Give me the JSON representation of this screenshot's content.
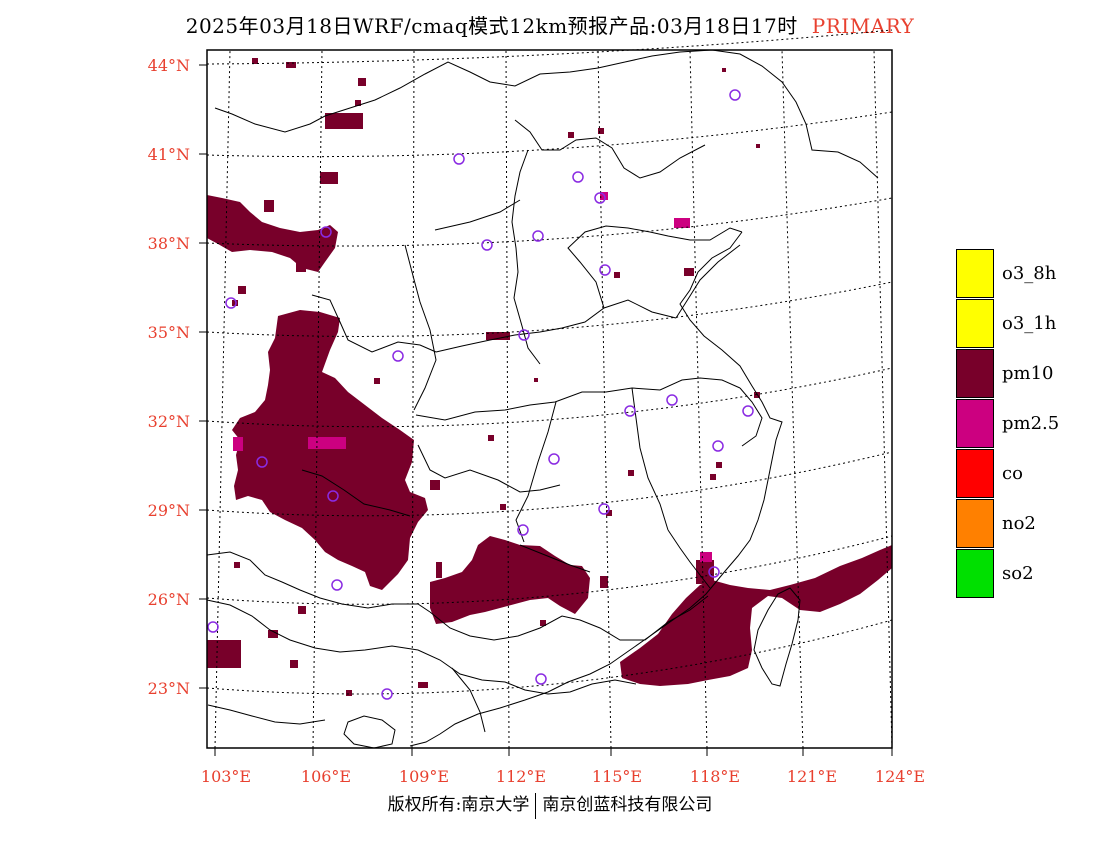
{
  "title": {
    "main": "2025年03月18日WRF/cmaq模式12km预报产品:03月18日17时",
    "pollutant": "PRIMARY"
  },
  "colors": {
    "label": "#e8402f",
    "pm10": "#78002a",
    "pm25": "#cc0080",
    "station": "#8a2be2"
  },
  "lat_labels": [
    "44°N",
    "41°N",
    "38°N",
    "35°N",
    "32°N",
    "29°N",
    "26°N",
    "23°N"
  ],
  "lon_labels": [
    "103°E",
    "106°E",
    "109°E",
    "112°E",
    "115°E",
    "118°E",
    "121°E",
    "124°E"
  ],
  "legend": [
    {
      "label": "o3_8h",
      "color": "#ffff00"
    },
    {
      "label": "o3_1h",
      "color": "#ffff00"
    },
    {
      "label": "pm10",
      "color": "#78002a"
    },
    {
      "label": "pm2.5",
      "color": "#cc0080"
    },
    {
      "label": "co",
      "color": "#ff0000"
    },
    {
      "label": "no2",
      "color": "#ff8000"
    },
    {
      "label": "so2",
      "color": "#00e000"
    }
  ],
  "footer": {
    "left": "版权所有:南京大学",
    "right": "南京创蓝科技有限公司"
  }
}
